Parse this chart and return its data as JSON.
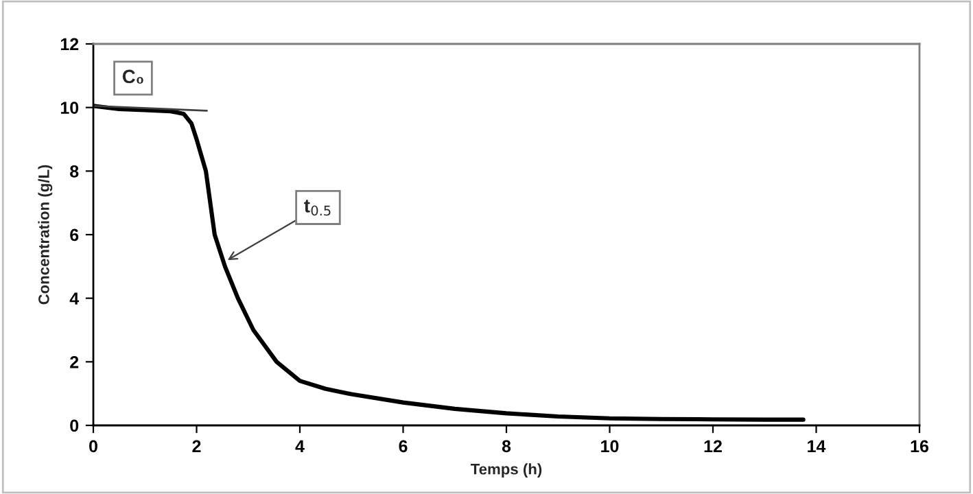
{
  "chart_data": {
    "type": "line",
    "xlabel": "Temps (h)",
    "ylabel": "Concentration (g/L)",
    "xlim": [
      0,
      16
    ],
    "xticks": [
      0,
      2,
      4,
      6,
      8,
      10,
      12,
      14,
      16
    ],
    "ylim": [
      0,
      12
    ],
    "yticks": [
      0,
      2,
      4,
      6,
      8,
      10,
      12
    ],
    "grid": false,
    "legend": false,
    "marker": "none",
    "line_style": "solid",
    "series": [
      {
        "color": "#000000",
        "x": [
          0,
          0.5,
          1,
          1.5,
          1.75,
          1.9,
          2.0,
          2.18,
          2.35,
          2.55,
          2.8,
          3.1,
          3.55,
          4,
          4.5,
          5,
          6,
          7,
          8,
          9,
          10,
          11,
          12,
          13,
          13.75
        ],
        "values": [
          10.05,
          9.95,
          9.92,
          9.88,
          9.8,
          9.5,
          9.0,
          8,
          6,
          5.0,
          4,
          3.0,
          2,
          1.4,
          1.15,
          0.98,
          0.72,
          0.52,
          0.38,
          0.28,
          0.22,
          0.2,
          0.19,
          0.18,
          0.18
        ]
      },
      {
        "type": "line",
        "color": "#404040",
        "x": [
          0,
          2.2
        ],
        "values": [
          10.05,
          9.9
        ]
      }
    ],
    "annotations": [
      {
        "text": "C₀",
        "x": 0,
        "y": 10.05
      },
      {
        "text": "t$_{0.5}$",
        "x": 2.6,
        "y": 5.2
      }
    ]
  }
}
